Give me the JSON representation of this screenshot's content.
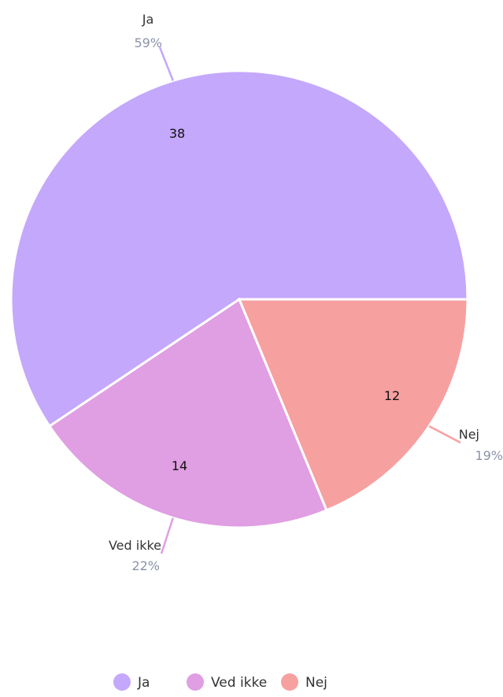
{
  "chart_data": {
    "type": "pie",
    "categories": [
      "Ja",
      "Ved ikke",
      "Nej"
    ],
    "values": [
      38,
      14,
      12
    ],
    "percent_labels": [
      "59%",
      "22%",
      "19%"
    ],
    "colors": [
      "#c4a8fb",
      "#e09ee3",
      "#f7a0a0"
    ],
    "legend": {
      "placement": "bottom-center",
      "items": [
        "Ja",
        "Ved ikke",
        "Nej"
      ]
    }
  }
}
